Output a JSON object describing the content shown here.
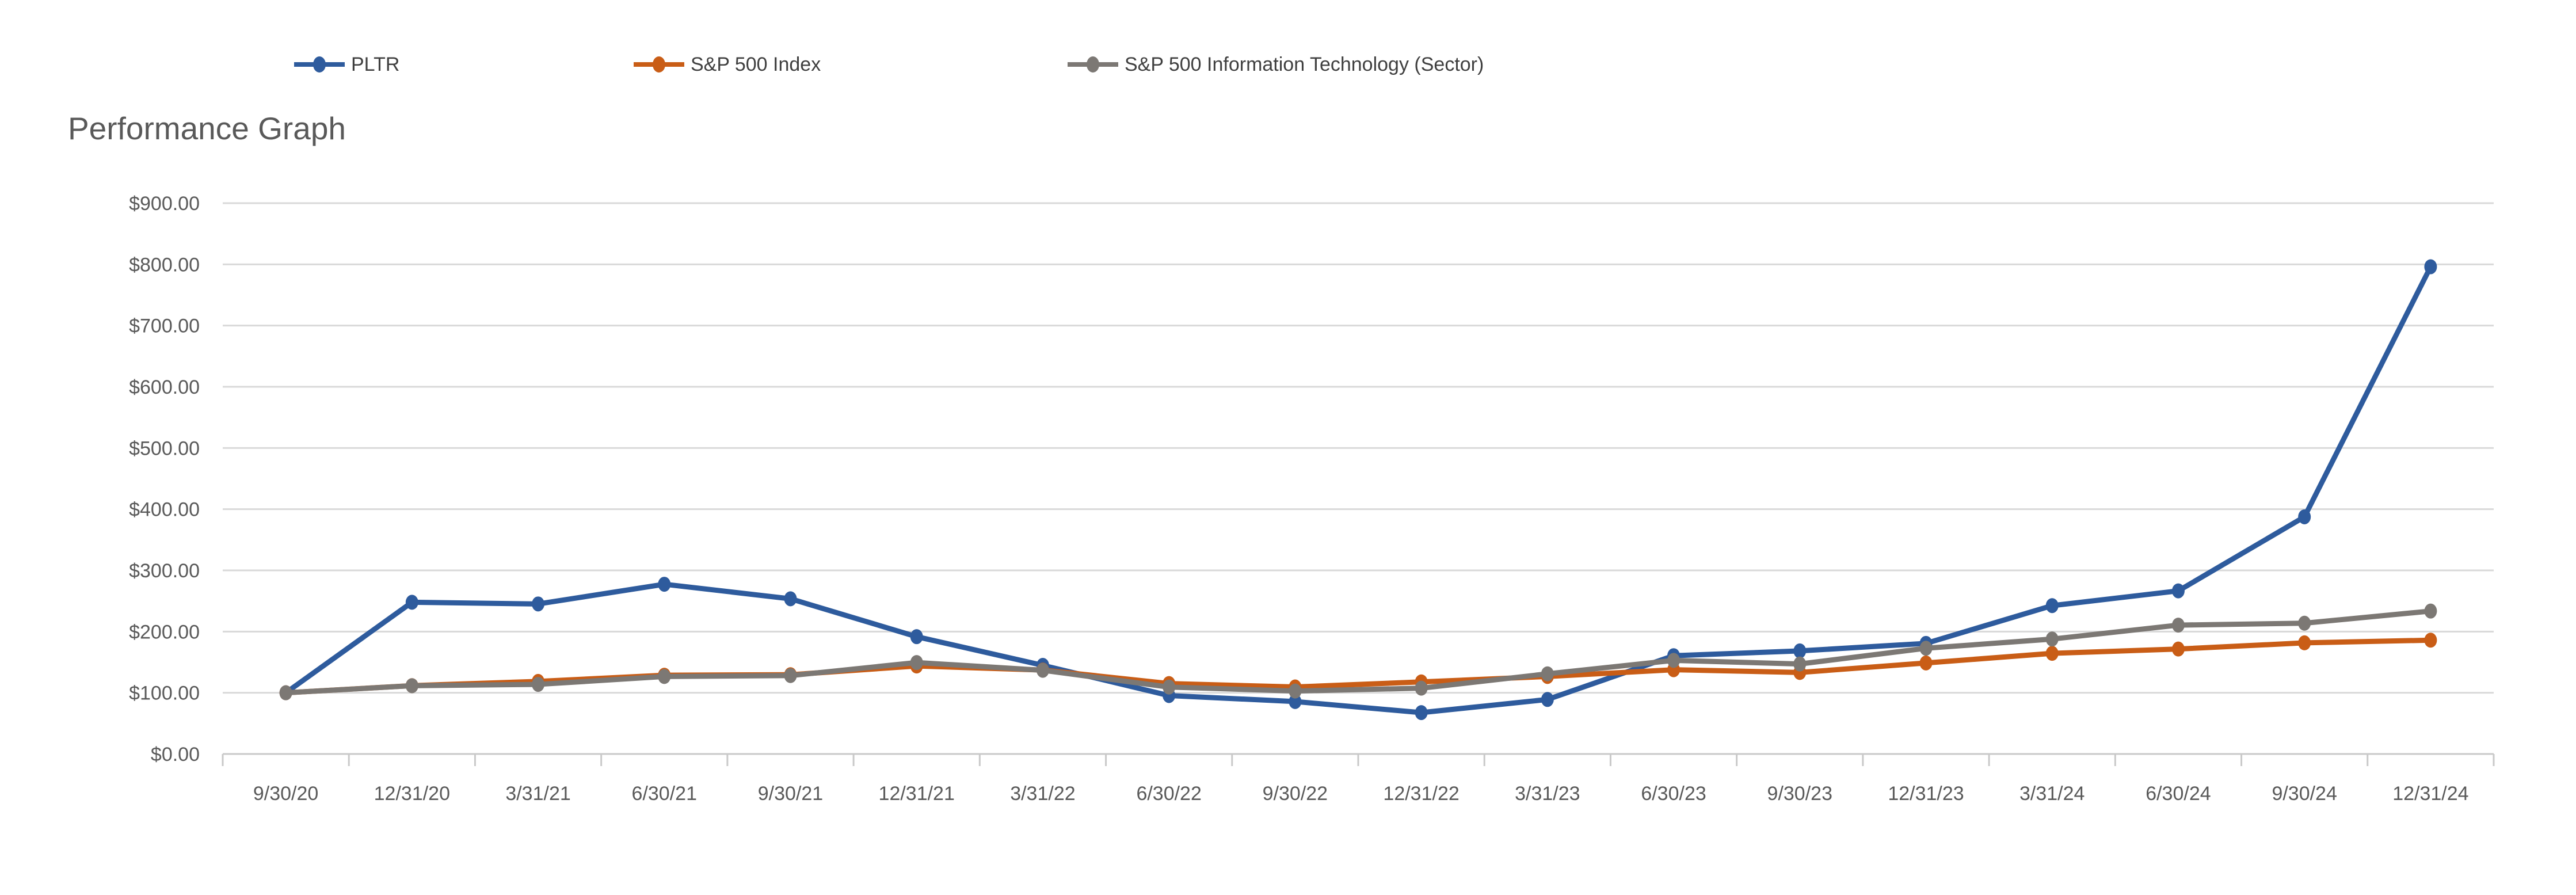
{
  "title": "Performance Graph",
  "legend": [
    {
      "label": "PLTR"
    },
    {
      "label": "S&P 500 Index"
    },
    {
      "label": "S&P 500 Information Technology (Sector)"
    }
  ],
  "colors": {
    "pltr": "#2e5b9d",
    "sp500": "#c95d16",
    "sp500_it": "#7c7874",
    "gridline": "#d9d9d9",
    "axis_line": "#c9c9c9",
    "axis_text": "#595959",
    "legend_text": "#3f3f3f",
    "title_text": "#595959",
    "background": "#ffffff"
  },
  "chart_data": {
    "type": "line",
    "title": "Performance Graph",
    "x_labels": [
      "9/30/20",
      "12/31/20",
      "3/31/21",
      "6/30/21",
      "9/30/21",
      "12/31/21",
      "3/31/22",
      "6/30/22",
      "9/30/22",
      "12/31/22",
      "3/31/23",
      "6/30/23",
      "9/30/23",
      "12/31/23",
      "3/31/24",
      "6/30/24",
      "9/30/24",
      "12/31/24"
    ],
    "series": [
      {
        "name": "PLTR",
        "color": "#2e5b9d",
        "values": [
          100.0,
          247.89,
          245.16,
          277.37,
          253.58,
          191.68,
          144.84,
          95.47,
          85.68,
          67.58,
          89.05,
          160.63,
          168.42,
          180.74,
          242.42,
          266.53,
          387.47,
          796.11
        ]
      },
      {
        "name": "S&P 500 Index",
        "color": "#c95d16",
        "values": [
          100.0,
          111.69,
          118.6,
          128.74,
          129.49,
          143.77,
          137.16,
          115.12,
          109.51,
          117.79,
          126.62,
          137.69,
          133.18,
          148.74,
          164.44,
          171.48,
          181.58,
          185.96
        ]
      },
      {
        "name": "S&P 500 Information Technology (Sector)",
        "color": "#7c7874",
        "values": [
          100.0,
          111.56,
          113.73,
          126.61,
          128.12,
          149.43,
          136.77,
          109.31,
          102.86,
          107.52,
          130.98,
          152.97,
          147.06,
          172.77,
          187.8,
          210.58,
          213.71,
          233.53
        ]
      }
    ],
    "ylim": [
      0,
      900
    ],
    "y_tick_step": 100,
    "y_tick_labels": [
      "$0.00",
      "$100.00",
      "$200.00",
      "$300.00",
      "$400.00",
      "$500.00",
      "$600.00",
      "$700.00",
      "$800.00",
      "$900.00"
    ],
    "grid": "horizontal-only",
    "legend_position": "top-left",
    "draw_order_note": "gray sector series drawn on top where lines overlap"
  }
}
